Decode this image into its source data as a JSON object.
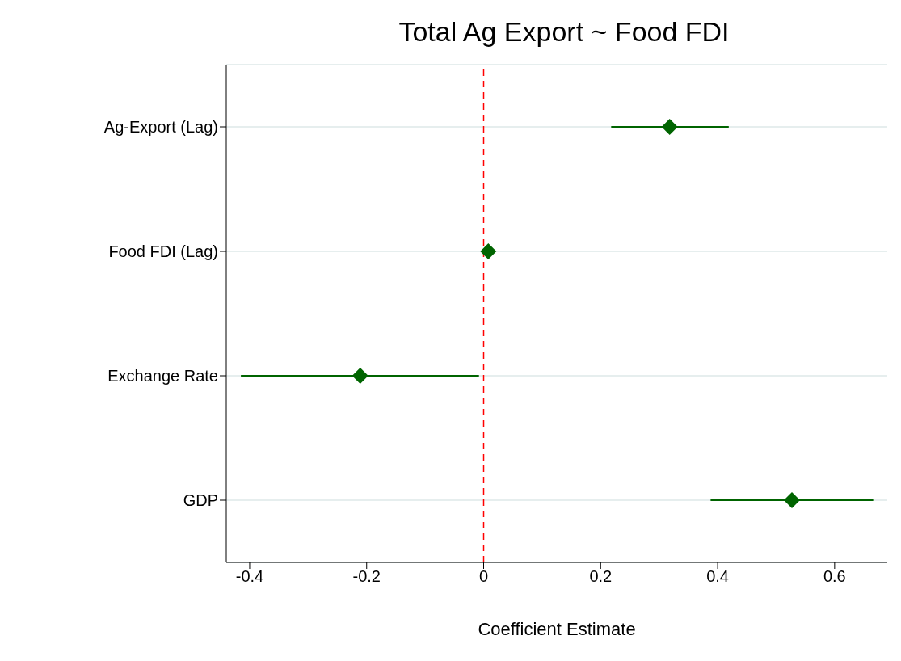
{
  "chart_data": {
    "type": "scatter",
    "orientation": "horizontal",
    "title": "Total Ag Export ~ Food FDI",
    "xlabel": "Coefficient Estimate",
    "categories": [
      "Ag-Export (Lag)",
      "Food FDI (Lag)",
      "Exchange Rate",
      "GDP"
    ],
    "values": [
      0.318,
      0.008,
      -0.211,
      0.527
    ],
    "errors": [
      [
        0.218,
        0.419
      ],
      null,
      [
        -0.415,
        -0.008
      ],
      [
        0.388,
        0.666
      ]
    ],
    "color": "#006400",
    "marker": "diamond",
    "xlim": [
      -0.44,
      0.69
    ],
    "xticks": [
      -0.4,
      -0.2,
      0,
      0.2,
      0.4,
      0.6
    ],
    "grid": "y",
    "legend": false,
    "ref_lines": [
      {
        "axis": "x",
        "value": 0,
        "color": "#ff0000",
        "line_style": "dashed"
      }
    ]
  }
}
